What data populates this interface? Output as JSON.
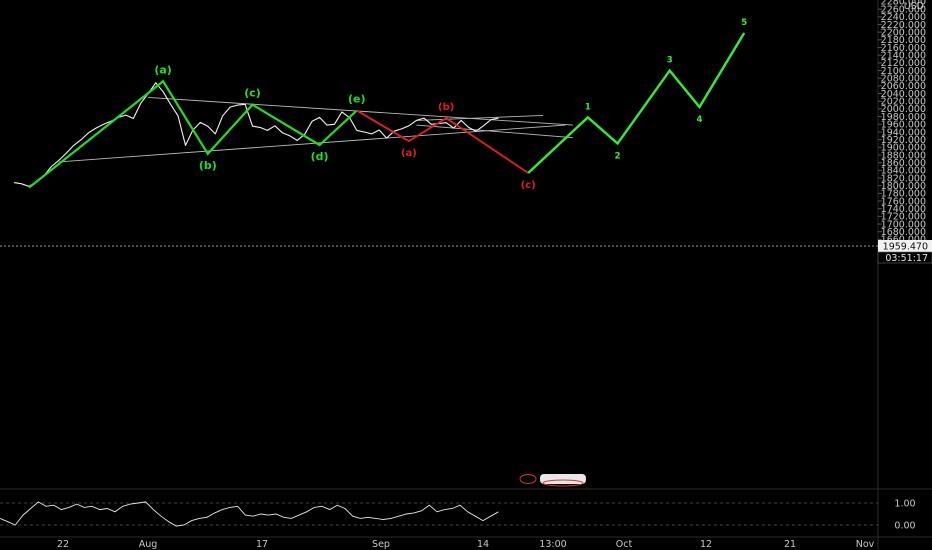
{
  "chart_data": {
    "type": "line",
    "ylabel": "USD",
    "y_axis": {
      "range": [
        1652,
        2290
      ],
      "ticks": [
        1660,
        1680,
        1700,
        1720,
        1740,
        1760,
        1780,
        1800,
        1820,
        1840,
        1860,
        1880,
        1900,
        1920,
        1940,
        1960,
        1980,
        2000,
        2020,
        2040,
        2060,
        2080,
        2100,
        2120,
        2140,
        2160,
        2180,
        2200,
        2220,
        2240,
        2260
      ],
      "tick_format": "0.000",
      "top_partial_label": "2280.000"
    },
    "x_axis": {
      "type": "time",
      "ticks": [
        "22",
        "Aug",
        "17",
        "Sep",
        "14",
        "13:00",
        "Oct",
        "12",
        "21",
        "Nov"
      ]
    },
    "price_series": {
      "name": "price",
      "x": [
        "Jul 17",
        "Jul 18",
        "Jul 19",
        "Jul 20",
        "Jul 21",
        "Jul 22",
        "Jul 23",
        "Jul 24",
        "Jul 25",
        "Jul 26",
        "Jul 27",
        "Jul 28",
        "Jul 29",
        "Jul 30",
        "Jul 31",
        "Aug 1",
        "Aug 2",
        "Aug 3",
        "Aug 4",
        "Aug 5",
        "Aug 6",
        "Aug 7",
        "Aug 8",
        "Aug 9",
        "Aug 10",
        "Aug 11",
        "Aug 12",
        "Aug 13",
        "Aug 14",
        "Aug 15",
        "Aug 16",
        "Aug 17",
        "Aug 18",
        "Aug 19",
        "Aug 20",
        "Aug 21",
        "Aug 22",
        "Aug 23",
        "Aug 24",
        "Aug 25",
        "Aug 26",
        "Aug 27",
        "Aug 28",
        "Aug 29",
        "Aug 30",
        "Aug 31",
        "Sep 1",
        "Sep 2",
        "Sep 3",
        "Sep 4",
        "Sep 5",
        "Sep 6",
        "Sep 7",
        "Sep 8",
        "Sep 9",
        "Sep 10",
        "Sep 11",
        "Sep 12",
        "Sep 13",
        "Sep 14",
        "Sep 15",
        "Sep 16",
        "Sep 17",
        "Sep 18",
        "Sep 19",
        "Sep 20"
      ],
      "y": [
        1808,
        1805,
        1798,
        1810,
        1826,
        1850,
        1866,
        1885,
        1905,
        1920,
        1938,
        1950,
        1960,
        1968,
        1978,
        1984,
        1975,
        2015,
        2040,
        2068,
        2045,
        2012,
        1982,
        1905,
        1945,
        1965,
        1955,
        1935,
        1982,
        2005,
        2010,
        2012,
        1955,
        1952,
        1944,
        1956,
        1938,
        1930,
        1918,
        1934,
        1968,
        1978,
        1958,
        1960,
        1992,
        1978,
        1944,
        1940,
        1935,
        1945,
        1924,
        1942,
        1948,
        1956,
        1970,
        1976,
        1960,
        1962,
        1964,
        1950,
        1970,
        1952,
        1942,
        1956,
        1972,
        1976
      ]
    },
    "current_price": "1959.470",
    "countdown": "03:51:17",
    "waves": {
      "green_abcde": {
        "points": [
          [
            "Jul 19",
            1795
          ],
          [
            "Aug 6",
            2072
          ],
          [
            "Aug 12",
            1883
          ],
          [
            "Aug 18",
            2011
          ],
          [
            "Aug 27",
            1906
          ],
          [
            "Sep 1",
            1996
          ]
        ],
        "labels": [
          "(a)",
          "(b)",
          "(c)",
          "(d)",
          "(e)"
        ]
      },
      "red_abc": {
        "points": [
          [
            "Sep 1",
            1996
          ],
          [
            "Sep 8",
            1916
          ],
          [
            "Sep 13",
            1976
          ],
          [
            "Sep 24",
            1833
          ]
        ],
        "labels": [
          "(a)",
          "(b)",
          "(c)"
        ]
      },
      "green_impulse": {
        "points": [
          [
            "Sep 24",
            1833
          ],
          [
            "Oct 2",
            1978
          ],
          [
            "Oct 6",
            1910
          ],
          [
            "Oct 13",
            2100
          ],
          [
            "Oct 17",
            2005
          ],
          [
            "Oct 23",
            2198
          ]
        ],
        "labels": [
          "1",
          "2",
          "3",
          "4",
          "5"
        ]
      }
    },
    "trendlines": [
      {
        "from": [
          "Aug 4",
          2030
        ],
        "to": [
          "Sep 30",
          1958
        ]
      },
      {
        "from": [
          "Jul 23",
          1862
        ],
        "to": [
          "Sep 29",
          1958
        ]
      },
      {
        "from": [
          "Sep 9",
          1970
        ],
        "to": [
          "Sep 26",
          1983
        ]
      },
      {
        "from": [
          "Sep 9",
          1958
        ],
        "to": [
          "Sep 30",
          1925
        ]
      }
    ],
    "indicator": {
      "ticks": [
        "1.00",
        "0.00"
      ],
      "range": [
        -0.2,
        1.4
      ],
      "values": [
        0.3,
        0.15,
        0.0,
        0.45,
        0.75,
        1.05,
        0.85,
        0.9,
        0.7,
        0.8,
        0.95,
        0.8,
        0.85,
        0.7,
        0.75,
        0.6,
        0.85,
        0.95,
        1.0,
        1.05,
        0.7,
        0.4,
        0.15,
        -0.05,
        0.0,
        0.2,
        0.3,
        0.35,
        0.55,
        0.7,
        0.8,
        0.85,
        0.45,
        0.4,
        0.5,
        0.45,
        0.5,
        0.35,
        0.3,
        0.45,
        0.6,
        0.8,
        0.85,
        0.7,
        0.9,
        0.75,
        0.4,
        0.3,
        0.35,
        0.3,
        0.25,
        0.3,
        0.4,
        0.5,
        0.55,
        0.65,
        0.9,
        0.6,
        0.7,
        0.75,
        0.9,
        0.6,
        0.4,
        0.2,
        0.4,
        0.6
      ]
    }
  }
}
